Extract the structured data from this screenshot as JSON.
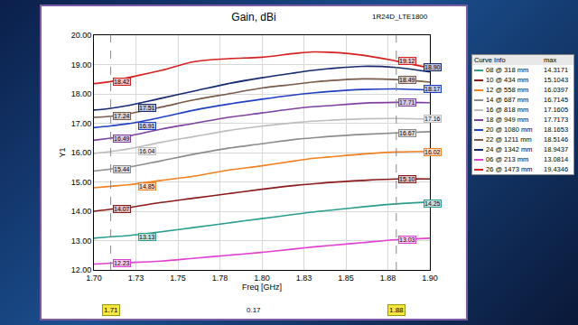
{
  "chart_data": {
    "type": "line",
    "title": "Gain, dBi",
    "annotations": [
      "1R24D_LTE1800"
    ],
    "x_label": "Freq [GHz]",
    "y_label": "Y1",
    "x": [
      1.7,
      1.71,
      1.72,
      1.74,
      1.76,
      1.78,
      1.8,
      1.82,
      1.83,
      1.84,
      1.86,
      1.88,
      1.9
    ],
    "xlim": [
      1.7,
      1.9
    ],
    "xticks": [
      {
        "value": 1.7,
        "label": "1.70"
      },
      {
        "value": 1.725,
        "label": "1.73"
      },
      {
        "value": 1.75,
        "label": "1.75"
      },
      {
        "value": 1.775,
        "label": "1.78"
      },
      {
        "value": 1.8,
        "label": "1.80"
      },
      {
        "value": 1.825,
        "label": "1.83"
      },
      {
        "value": 1.85,
        "label": "1.85"
      },
      {
        "value": 1.875,
        "label": "1.88"
      },
      {
        "value": 1.9,
        "label": "1.90"
      }
    ],
    "ylim": [
      12,
      20
    ],
    "yticks": [
      {
        "value": 12,
        "label": "12.00"
      },
      {
        "value": 13,
        "label": "13.00"
      },
      {
        "value": 14,
        "label": "14.00"
      },
      {
        "value": 15,
        "label": "15.00"
      },
      {
        "value": 16,
        "label": "16.00"
      },
      {
        "value": 17,
        "label": "17.00"
      },
      {
        "value": 18,
        "label": "18.00"
      },
      {
        "value": 19,
        "label": "19.00"
      },
      {
        "value": 20,
        "label": "20.00"
      }
    ],
    "grid": true,
    "markers": [
      1.71,
      1.88
    ],
    "marker_delta": 0.17,
    "curve_info": {
      "title": "Curve Info",
      "column": "max"
    },
    "series": [
      {
        "name": "08 @ 318 mm",
        "color": "#2a9d8f",
        "max": 14.3171,
        "marker_labels": [
          "13.13",
          "14.25"
        ],
        "values": [
          13.08,
          13.13,
          13.17,
          13.3,
          13.45,
          13.6,
          13.75,
          13.9,
          13.97,
          14.03,
          14.15,
          14.25,
          14.32
        ]
      },
      {
        "name": "10 @ 434 mm",
        "color": "#8b1a1a",
        "max": 15.1043,
        "marker_labels": [
          "14.07",
          "15.10"
        ],
        "values": [
          14.0,
          14.07,
          14.12,
          14.3,
          14.45,
          14.6,
          14.75,
          14.88,
          14.93,
          14.98,
          15.05,
          15.1,
          15.1
        ]
      },
      {
        "name": "12 @ 558 mm",
        "color": "#f08020",
        "max": 16.0397,
        "marker_labels": [
          "14.85",
          "16.02"
        ],
        "values": [
          14.8,
          14.85,
          14.9,
          15.05,
          15.2,
          15.4,
          15.55,
          15.72,
          15.8,
          15.85,
          15.95,
          16.02,
          16.04
        ]
      },
      {
        "name": "14 @ 687 mm",
        "color": "#8c8c8c",
        "max": 16.7145,
        "marker_labels": [
          "15.44",
          "16.67"
        ],
        "values": [
          15.37,
          15.44,
          15.5,
          15.72,
          15.95,
          16.15,
          16.3,
          16.45,
          16.5,
          16.55,
          16.62,
          16.67,
          16.71
        ]
      },
      {
        "name": "16 @ 818 mm",
        "color": "#bdbdbd",
        "max": 17.1605,
        "marker_labels": [
          "16.04",
          "17.16"
        ],
        "values": [
          15.97,
          16.04,
          16.12,
          16.35,
          16.55,
          16.75,
          16.9,
          17.02,
          17.07,
          17.1,
          17.15,
          17.16,
          17.14
        ]
      },
      {
        "name": "18 @ 949 mm",
        "color": "#8040a0",
        "max": 17.7173,
        "marker_labels": [
          "16.49",
          "17.71"
        ],
        "values": [
          16.42,
          16.49,
          16.56,
          16.8,
          17.0,
          17.2,
          17.35,
          17.5,
          17.56,
          17.6,
          17.68,
          17.71,
          17.7
        ]
      },
      {
        "name": "20 @ 1080 mm",
        "color": "#2040c0",
        "max": 18.1653,
        "marker_labels": [
          "16.91",
          "18.17"
        ],
        "values": [
          16.85,
          16.91,
          16.98,
          17.2,
          17.45,
          17.65,
          17.82,
          17.97,
          18.03,
          18.08,
          18.15,
          18.17,
          18.13
        ]
      },
      {
        "name": "22 @ 1211 mm",
        "color": "#7a5a48",
        "max": 18.5146,
        "marker_labels": [
          "17.24",
          "18.49"
        ],
        "values": [
          17.2,
          17.24,
          17.32,
          17.55,
          17.8,
          18.0,
          18.2,
          18.33,
          18.4,
          18.45,
          18.51,
          18.49,
          18.4
        ]
      },
      {
        "name": "24 @ 1342 mm",
        "color": "#142a6e",
        "max": 18.9437,
        "marker_labels": [
          "17.51",
          "18.90"
        ],
        "values": [
          17.45,
          17.51,
          17.6,
          17.85,
          18.1,
          18.35,
          18.55,
          18.72,
          18.8,
          18.86,
          18.94,
          18.9,
          18.75
        ]
      },
      {
        "name": "06 @ 213 mm",
        "color": "#e040d0",
        "max": 13.0814,
        "marker_labels": [
          "12.23",
          "13.03"
        ],
        "values": [
          12.2,
          12.23,
          12.25,
          12.3,
          12.4,
          12.5,
          12.6,
          12.72,
          12.78,
          12.83,
          12.93,
          13.03,
          13.08
        ]
      },
      {
        "name": "26 @ 1473 mm",
        "color": "#d42020",
        "max": 19.4346,
        "marker_labels": [
          "18.42",
          "19.12"
        ],
        "values": [
          18.35,
          18.42,
          18.55,
          18.8,
          19.1,
          19.2,
          19.25,
          19.38,
          19.43,
          19.42,
          19.32,
          19.12,
          18.88
        ]
      }
    ]
  }
}
